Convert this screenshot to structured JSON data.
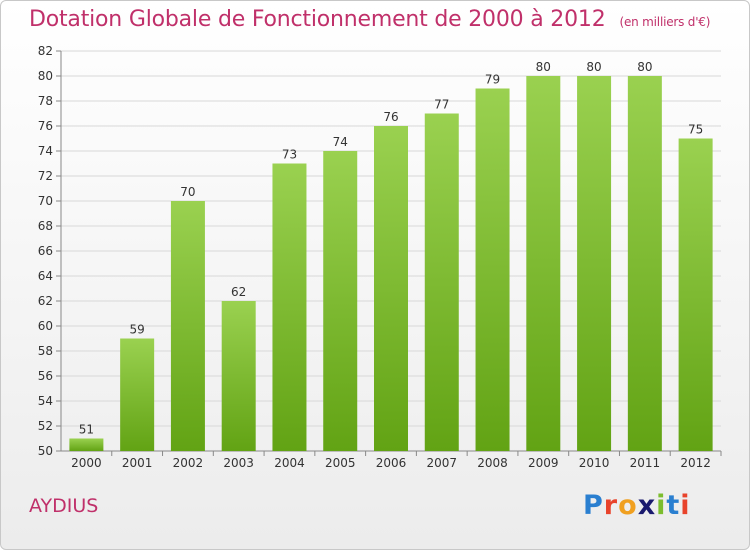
{
  "title": "Dotation Globale de Fonctionnement de 2000 à 2012",
  "subtitle": "(en milliers d'€)",
  "commune": "AYDIUS",
  "logo": {
    "text": "Proxiti",
    "letters": [
      {
        "ch": "P",
        "color": "#2a7fd0"
      },
      {
        "ch": "r",
        "color": "#e8432b"
      },
      {
        "ch": "o",
        "color": "#f0a020"
      },
      {
        "ch": "x",
        "color": "#1a1a6e"
      },
      {
        "ch": "i",
        "color": "#7cbd2e"
      },
      {
        "ch": "t",
        "color": "#2a7fd0"
      },
      {
        "ch": "i",
        "color": "#e8432b"
      }
    ]
  },
  "colors": {
    "title": "#c0306a",
    "bar_light": "#9ad150",
    "bar_dark": "#62a314",
    "grid": "#d8d8d8",
    "axis_text": "#333333"
  },
  "chart_data": {
    "type": "bar",
    "categories": [
      "2000",
      "2001",
      "2002",
      "2003",
      "2004",
      "2005",
      "2006",
      "2007",
      "2008",
      "2009",
      "2010",
      "2011",
      "2012"
    ],
    "values": [
      51,
      59,
      70,
      62,
      73,
      74,
      76,
      77,
      79,
      80,
      80,
      80,
      75
    ],
    "yticks": [
      50,
      52,
      54,
      56,
      58,
      60,
      62,
      64,
      66,
      68,
      70,
      72,
      74,
      76,
      78,
      80,
      82
    ],
    "ylim": [
      50,
      82
    ],
    "grid": true,
    "legend": "none"
  }
}
